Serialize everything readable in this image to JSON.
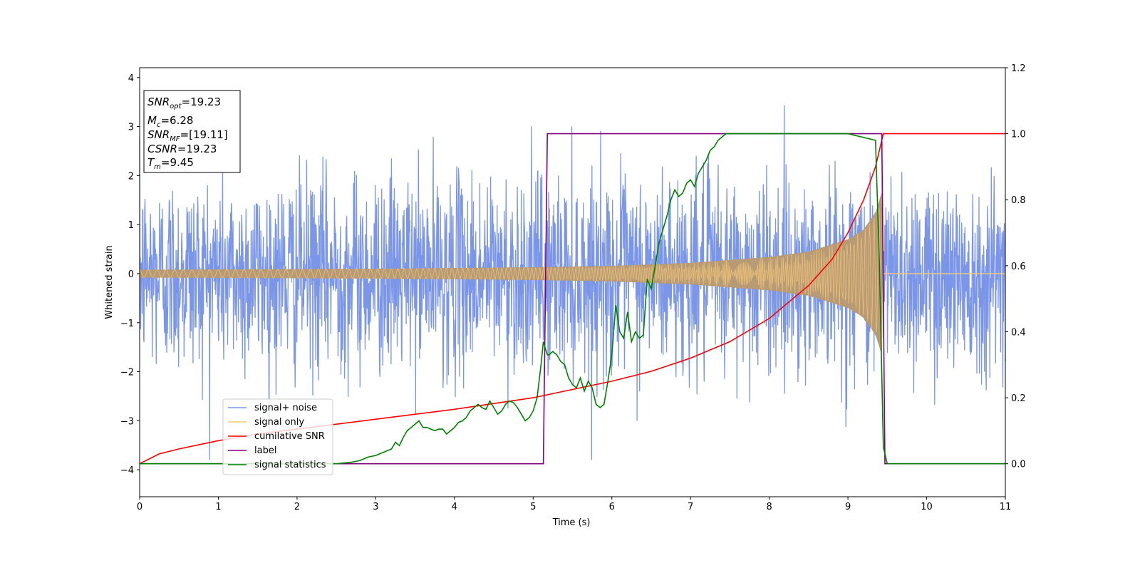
{
  "chart_data": {
    "type": "line",
    "xlabel": "Time (s)",
    "ylabel": "Whitened strain",
    "xlim": [
      0,
      11
    ],
    "ylim": [
      -4.55,
      4.2
    ],
    "y2lim": [
      -0.1,
      1.2
    ],
    "x_ticks": [
      "0",
      "1",
      "2",
      "3",
      "4",
      "5",
      "6",
      "7",
      "8",
      "9",
      "10",
      "11"
    ],
    "y_ticks": [
      "4",
      "3",
      "2",
      "1",
      "0",
      "−1",
      "−2",
      "−3",
      "−4"
    ],
    "y_tick_values": [
      4,
      3,
      2,
      1,
      0,
      -1,
      -2,
      -3,
      -4
    ],
    "y2_ticks": [
      "1.2",
      "1.0",
      "0.8",
      "0.6",
      "0.4",
      "0.2",
      "0.0"
    ],
    "y2_tick_values": [
      1.2,
      1.0,
      0.8,
      0.6,
      0.4,
      0.2,
      0.0
    ],
    "grid": false,
    "legend_position": "lower-left",
    "info_box": {
      "snr_opt": {
        "base": "SNR",
        "sub": "opt",
        "value": "=19.23"
      },
      "mc": {
        "base": "M",
        "sub": "c",
        "value": "=6.28"
      },
      "snr_mf": {
        "base": "SNR",
        "sub": "MF",
        "value": "=[19.11]"
      },
      "csnr": {
        "base": "CSNR",
        "value": "=19.23"
      },
      "tm": {
        "base": "T",
        "sub": "m",
        "value": "=9.45"
      }
    },
    "series": [
      {
        "name": "signal+ noise",
        "axis": "left",
        "color": "#7b96e8",
        "description_points": {
          "x_range": [
            0,
            11
          ],
          "noise_std": 1.0,
          "max_peak": 3.75,
          "min_peak": -3.8
        }
      },
      {
        "name": "signal only",
        "axis": "left",
        "color": "#f5c87a",
        "envelope": {
          "x": [
            0,
            3,
            5,
            6,
            7,
            8,
            8.5,
            9,
            9.2,
            9.35,
            9.42,
            9.45
          ],
          "amp": [
            0.08,
            0.1,
            0.13,
            0.16,
            0.22,
            0.34,
            0.45,
            0.7,
            0.9,
            1.25,
            1.6,
            1.9
          ]
        }
      },
      {
        "name": "cumilative SNR",
        "axis": "right",
        "color": "#ff0000",
        "x": [
          0,
          0.25,
          0.5,
          1,
          1.5,
          2,
          3,
          4,
          5,
          5.5,
          6,
          6.5,
          7,
          7.5,
          8,
          8.5,
          8.8,
          9,
          9.2,
          9.35,
          9.45,
          11
        ],
        "y": [
          0.0,
          0.03,
          0.045,
          0.07,
          0.09,
          0.105,
          0.135,
          0.165,
          0.2,
          0.225,
          0.25,
          0.28,
          0.32,
          0.37,
          0.44,
          0.54,
          0.62,
          0.7,
          0.8,
          0.9,
          1.0,
          1.0
        ]
      },
      {
        "name": "label",
        "axis": "right",
        "color": "#800080",
        "x": [
          0,
          5.13,
          5.18,
          9.43,
          9.47,
          11
        ],
        "y": [
          0,
          0,
          1,
          1,
          0,
          0
        ]
      },
      {
        "name": "signal statistics",
        "axis": "right",
        "color": "#008000",
        "x": [
          0,
          1,
          2,
          2.5,
          2.7,
          2.8,
          2.9,
          3.0,
          3.1,
          3.2,
          3.25,
          3.3,
          3.35,
          3.4,
          3.5,
          3.55,
          3.6,
          3.65,
          3.7,
          3.75,
          3.8,
          3.85,
          3.9,
          4.0,
          4.05,
          4.1,
          4.15,
          4.2,
          4.25,
          4.3,
          4.35,
          4.4,
          4.45,
          4.5,
          4.55,
          4.6,
          4.65,
          4.7,
          4.75,
          4.8,
          4.85,
          4.9,
          4.95,
          5.0,
          5.05,
          5.1,
          5.13,
          5.18,
          5.2,
          5.25,
          5.3,
          5.35,
          5.4,
          5.45,
          5.5,
          5.55,
          5.6,
          5.65,
          5.7,
          5.75,
          5.8,
          5.85,
          5.9,
          5.95,
          6.0,
          6.05,
          6.1,
          6.15,
          6.2,
          6.25,
          6.3,
          6.35,
          6.4,
          6.45,
          6.5,
          6.55,
          6.6,
          6.65,
          6.7,
          6.75,
          6.8,
          6.85,
          6.9,
          6.95,
          7.0,
          7.05,
          7.1,
          7.15,
          7.2,
          7.25,
          7.3,
          7.35,
          7.4,
          7.45,
          7.5,
          7.6,
          7.7,
          8,
          8.5,
          9,
          9.35,
          9.4,
          9.45,
          9.5,
          9.55,
          11
        ],
        "y": [
          0.0,
          0.0,
          0.0,
          0.0,
          0.005,
          0.01,
          0.02,
          0.025,
          0.035,
          0.045,
          0.065,
          0.055,
          0.08,
          0.1,
          0.12,
          0.13,
          0.11,
          0.11,
          0.105,
          0.1,
          0.105,
          0.105,
          0.09,
          0.11,
          0.125,
          0.13,
          0.14,
          0.16,
          0.17,
          0.18,
          0.17,
          0.165,
          0.19,
          0.17,
          0.15,
          0.16,
          0.18,
          0.19,
          0.185,
          0.17,
          0.15,
          0.13,
          0.14,
          0.16,
          0.2,
          0.3,
          0.37,
          0.33,
          0.33,
          0.34,
          0.33,
          0.31,
          0.3,
          0.26,
          0.24,
          0.23,
          0.26,
          0.22,
          0.25,
          0.23,
          0.18,
          0.17,
          0.18,
          0.25,
          0.33,
          0.48,
          0.4,
          0.38,
          0.46,
          0.37,
          0.4,
          0.38,
          0.39,
          0.56,
          0.53,
          0.6,
          0.67,
          0.71,
          0.75,
          0.8,
          0.83,
          0.81,
          0.82,
          0.85,
          0.86,
          0.84,
          0.88,
          0.9,
          0.92,
          0.95,
          0.96,
          0.98,
          0.99,
          1.0,
          1.0,
          1.0,
          1.0,
          1.0,
          1.0,
          1.0,
          0.98,
          0.6,
          0.05,
          0.0,
          0.0,
          0.0
        ]
      }
    ]
  }
}
